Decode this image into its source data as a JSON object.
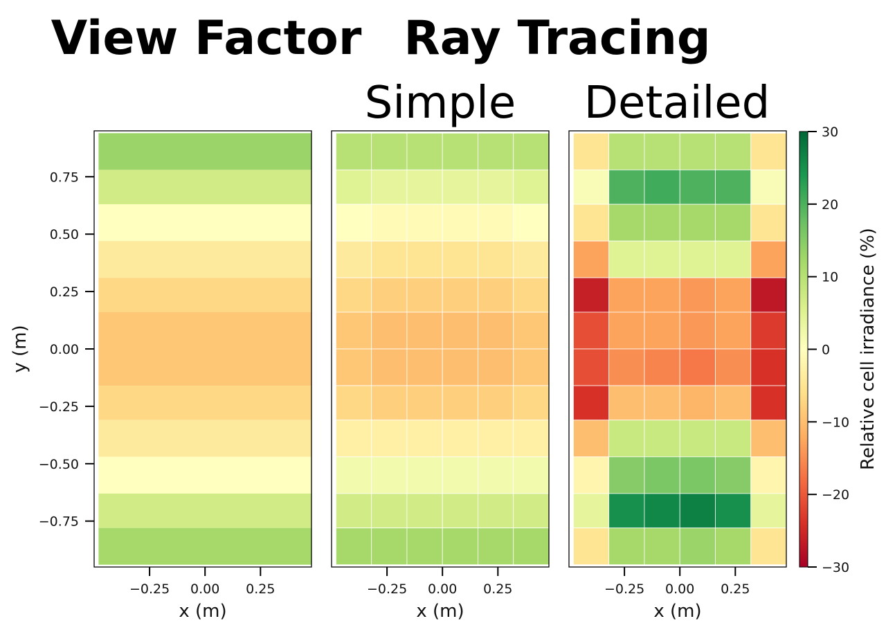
{
  "figure": {
    "heading_left": "View Factor",
    "heading_right": "Ray Tracing",
    "subheading_left": "Simple",
    "subheading_right": "Detailed"
  },
  "chart_data": [
    {
      "type": "heatmap",
      "panel": "View Factor",
      "xlabel": "x (m)",
      "ylabel": "y (m)",
      "x_ticks": [
        -0.25,
        0.0,
        0.25
      ],
      "y_ticks": [
        0.75,
        0.5,
        0.25,
        0.0,
        -0.25,
        -0.5,
        -0.75
      ],
      "x_tick_labels": [
        "−0.25",
        "0.00",
        "0.25"
      ],
      "y_tick_labels": [
        "0.75",
        "0.50",
        "0.25",
        "0.00",
        "−0.25",
        "−0.50",
        "−0.75"
      ],
      "xlim": [
        -0.5,
        0.48
      ],
      "ylim": [
        -0.95,
        0.95
      ],
      "x_edges": [
        -0.48,
        0.48
      ],
      "y_edges": [
        0.94,
        0.78,
        0.63,
        0.47,
        0.31,
        0.16,
        0.0,
        -0.16,
        -0.31,
        -0.47,
        -0.63,
        -0.78,
        -0.94
      ],
      "grid": false,
      "values": [
        [
          13
        ],
        [
          7
        ],
        [
          0
        ],
        [
          -4
        ],
        [
          -7
        ],
        [
          -9
        ],
        [
          -9
        ],
        [
          -7
        ],
        [
          -4
        ],
        [
          0
        ],
        [
          7
        ],
        [
          12
        ]
      ]
    },
    {
      "type": "heatmap",
      "panel": "Simple",
      "xlabel": "x (m)",
      "x_ticks": [
        -0.25,
        0.0,
        0.25
      ],
      "x_tick_labels": [
        "−0.25",
        "0.00",
        "0.25"
      ],
      "xlim": [
        -0.5,
        0.48
      ],
      "ylim": [
        -0.95,
        0.95
      ],
      "x_edges": [
        -0.48,
        -0.32,
        -0.16,
        0.0,
        0.16,
        0.32,
        0.48
      ],
      "y_edges": [
        0.94,
        0.78,
        0.63,
        0.47,
        0.31,
        0.16,
        0.0,
        -0.16,
        -0.31,
        -0.47,
        -0.63,
        -0.78,
        -0.94
      ],
      "grid": true,
      "values": [
        [
          10,
          10,
          10,
          10,
          10,
          10
        ],
        [
          5,
          4,
          4,
          4,
          4,
          5
        ],
        [
          0,
          -1,
          -1,
          -1,
          -1,
          0
        ],
        [
          -4,
          -5,
          -5,
          -5,
          -5,
          -4
        ],
        [
          -7,
          -8,
          -8,
          -8,
          -8,
          -7
        ],
        [
          -9,
          -10,
          -10,
          -10,
          -10,
          -9
        ],
        [
          -9,
          -10,
          -10,
          -10,
          -10,
          -9
        ],
        [
          -7,
          -8,
          -8,
          -8,
          -8,
          -7
        ],
        [
          -3,
          -3,
          -3,
          -3,
          -3,
          -3
        ],
        [
          2,
          2,
          2,
          2,
          2,
          2
        ],
        [
          7,
          7,
          7,
          7,
          7,
          7
        ],
        [
          12,
          12,
          12,
          12,
          12,
          12
        ]
      ]
    },
    {
      "type": "heatmap",
      "panel": "Detailed",
      "xlabel": "x (m)",
      "x_ticks": [
        -0.25,
        0.0,
        0.25
      ],
      "x_tick_labels": [
        "−0.25",
        "0.00",
        "0.25"
      ],
      "xlim": [
        -0.5,
        0.48
      ],
      "ylim": [
        -0.95,
        0.95
      ],
      "x_edges": [
        -0.48,
        -0.32,
        -0.16,
        0.0,
        0.16,
        0.32,
        0.48
      ],
      "y_edges": [
        0.94,
        0.78,
        0.63,
        0.47,
        0.31,
        0.16,
        0.0,
        -0.16,
        -0.31,
        -0.47,
        -0.63,
        -0.78,
        -0.94
      ],
      "grid": true,
      "values": [
        [
          -5,
          10,
          10,
          10,
          10,
          -5
        ],
        [
          1,
          20,
          21,
          20,
          20,
          1
        ],
        [
          -5,
          12,
          12,
          12,
          12,
          -5
        ],
        [
          -13,
          5,
          5,
          5,
          5,
          -13
        ],
        [
          -26,
          -13,
          -13,
          -14,
          -13,
          -27
        ],
        [
          -21,
          -13,
          -13,
          -14,
          -13,
          -23
        ],
        [
          -21,
          -15,
          -16,
          -17,
          -15,
          -24
        ],
        [
          -24,
          -10,
          -10,
          -11,
          -10,
          -24
        ],
        [
          -10,
          8,
          8,
          8,
          8,
          -10
        ],
        [
          -2,
          15,
          16,
          16,
          15,
          -2
        ],
        [
          4,
          25,
          26,
          27,
          25,
          4
        ],
        [
          -5,
          12,
          12,
          13,
          12,
          -5
        ]
      ]
    }
  ],
  "colorbar": {
    "label": "Relative cell irradiance (%)",
    "colormap": "RdYlGn",
    "vmin": -30,
    "vmax": 30,
    "ticks": [
      30,
      20,
      10,
      0,
      -10,
      -20,
      -30
    ],
    "tick_labels": [
      "30",
      "20",
      "10",
      "0",
      "−10",
      "−20",
      "−30"
    ]
  },
  "colors": {
    "cmap_stops": [
      "#a50026",
      "#d73027",
      "#f46d43",
      "#fdae61",
      "#fee08b",
      "#ffffbf",
      "#d9ef8b",
      "#a6d96a",
      "#66bd63",
      "#1a9850",
      "#006837"
    ],
    "frame": "#000000",
    "cell_grid": "#ffffff"
  }
}
